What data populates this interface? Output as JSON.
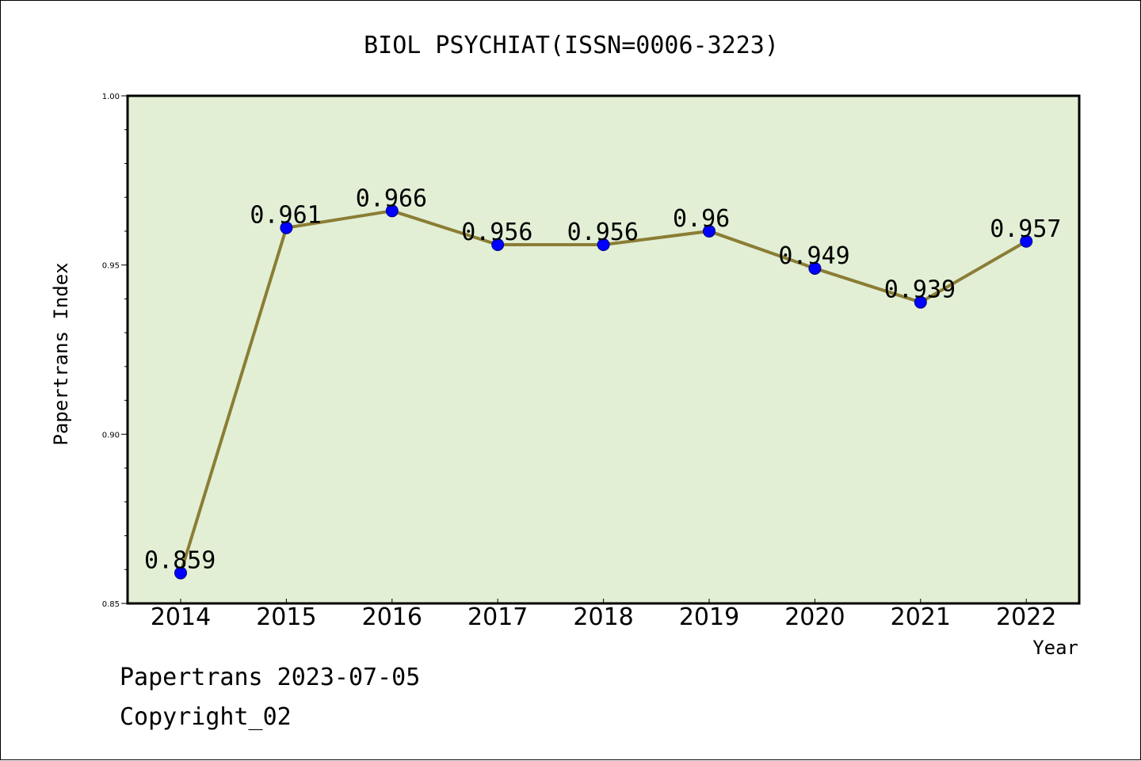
{
  "chart_data": {
    "type": "line",
    "title": "BIOL PSYCHIAT(ISSN=0006-3223)",
    "xlabel": "Year",
    "ylabel": "Papertrans Index",
    "categories": [
      "2014",
      "2015",
      "2016",
      "2017",
      "2018",
      "2019",
      "2020",
      "2021",
      "2022"
    ],
    "values": [
      0.859,
      0.961,
      0.966,
      0.956,
      0.956,
      0.96,
      0.949,
      0.939,
      0.957
    ],
    "data_labels": [
      "0.859",
      "0.961",
      "0.966",
      "0.956",
      "0.956",
      "0.96",
      "0.949",
      "0.939",
      "0.957"
    ],
    "ylim": [
      0.85,
      1.0
    ],
    "yticks": [
      0.85,
      0.9,
      0.95,
      1.0
    ],
    "ytick_labels": [
      "0.85",
      "0.90",
      "0.95",
      "1.00"
    ],
    "grid": false,
    "colors": {
      "plot_background": "#e2efd5",
      "line": "#8b7d35",
      "marker": "#0000ff"
    }
  },
  "footer": {
    "line1": "Papertrans 2023-07-05",
    "line2": "Copyright_02"
  }
}
